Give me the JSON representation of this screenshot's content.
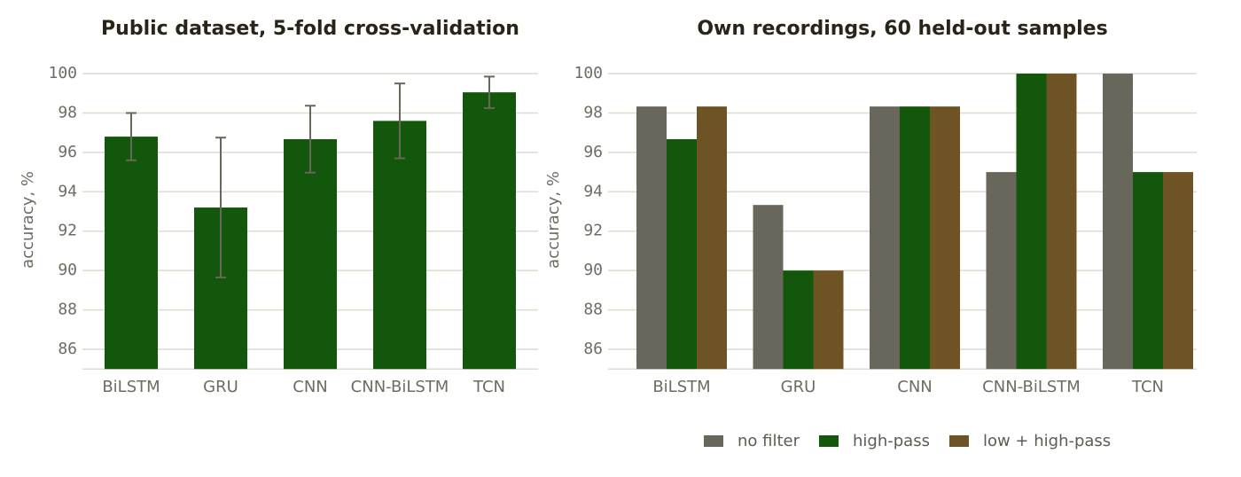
{
  "chart_data": [
    {
      "type": "bar",
      "title": "Public dataset, 5-fold cross-validation",
      "y_label": "accuracy, %",
      "categories": [
        "BiLSTM",
        "GRU",
        "CNN",
        "CNN-BiLSTM",
        "TCN"
      ],
      "values": [
        96.8,
        93.2,
        96.67,
        97.6,
        99.05
      ],
      "errors": [
        1.2,
        3.55,
        1.7,
        1.9,
        0.8
      ],
      "color": "#12570c",
      "error_color": "#69675b",
      "ylim": [
        85,
        100.6
      ],
      "yticks": [
        86,
        88,
        90,
        92,
        94,
        96,
        98,
        100
      ],
      "grid": true
    },
    {
      "type": "grouped-bar",
      "title": "Own recordings, 60 held-out samples",
      "y_label": "accuracy, %",
      "categories": [
        "BiLSTM",
        "GRU",
        "CNN",
        "CNN-BiLSTM",
        "TCN"
      ],
      "series": [
        {
          "name": "no filter",
          "color": "#69675b",
          "values": [
            98.33,
            93.33,
            98.33,
            95,
            100
          ]
        },
        {
          "name": "high-pass",
          "color": "#12570c",
          "values": [
            96.67,
            90,
            98.33,
            100,
            95
          ]
        },
        {
          "name": "low + high-pass",
          "color": "#6e5425",
          "values": [
            98.33,
            90,
            98.33,
            100,
            95
          ]
        }
      ],
      "ylim": [
        85,
        100.6
      ],
      "yticks": [
        86,
        88,
        90,
        92,
        94,
        96,
        98,
        100
      ],
      "grid": true,
      "legend": "below"
    }
  ]
}
